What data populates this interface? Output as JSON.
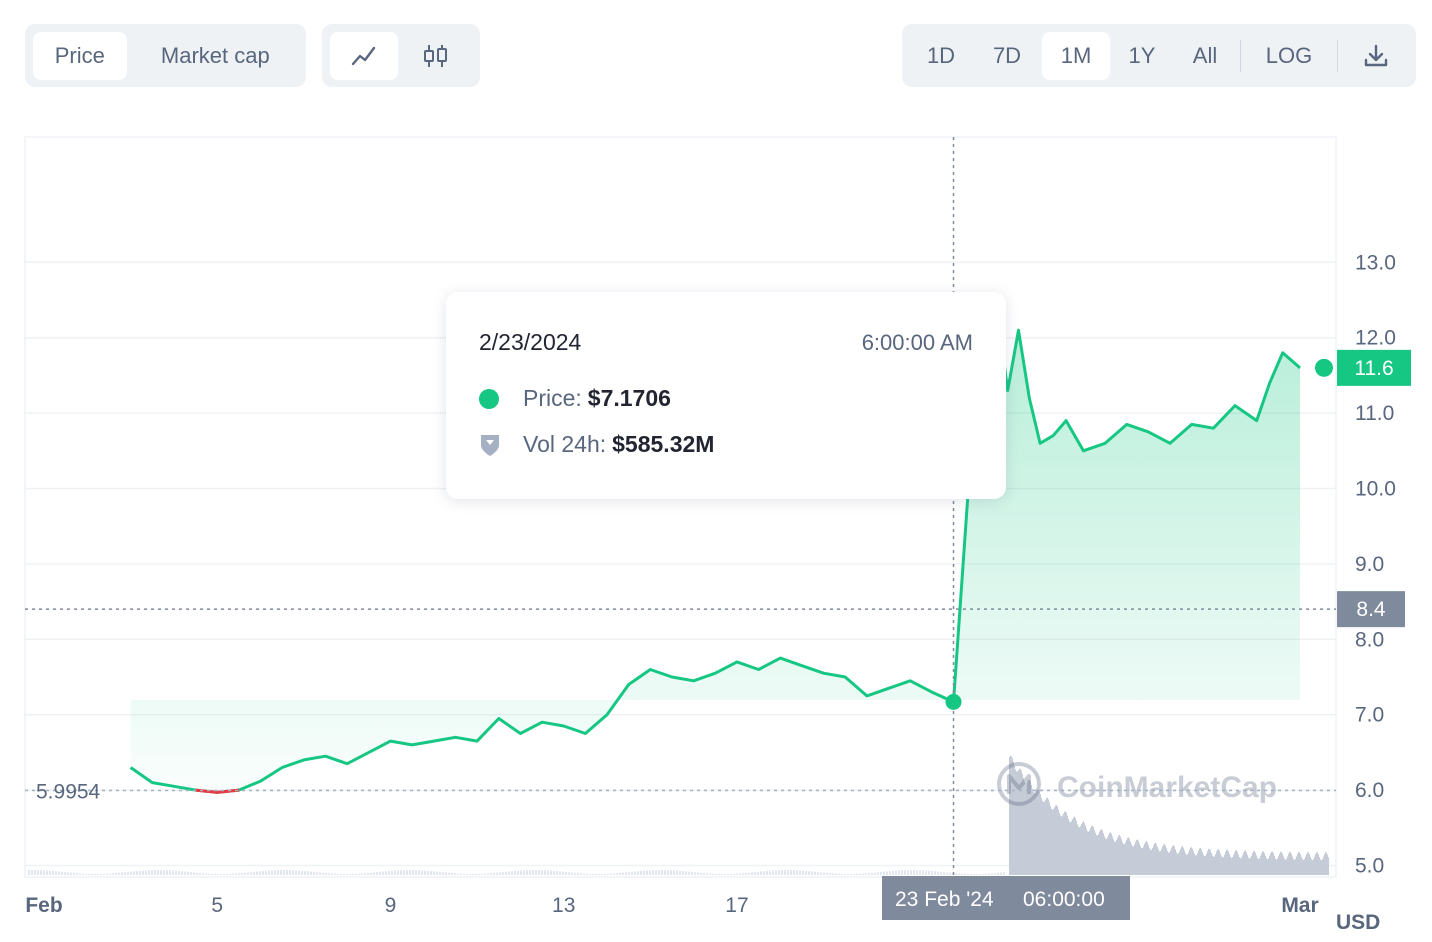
{
  "toolbar": {
    "metric_tabs": [
      {
        "label": "Price",
        "active": true
      },
      {
        "label": "Market cap",
        "active": false
      }
    ],
    "chart_type_icons": [
      "line-chart-icon",
      "candlestick-icon"
    ],
    "ranges": [
      {
        "label": "1D",
        "active": false
      },
      {
        "label": "7D",
        "active": false
      },
      {
        "label": "1M",
        "active": true
      },
      {
        "label": "1Y",
        "active": false
      },
      {
        "label": "All",
        "active": false
      }
    ],
    "log_label": "LOG",
    "download_icon": "download-icon"
  },
  "tooltip": {
    "date": "2/23/2024",
    "time": "6:00:00 AM",
    "price_key": "Price:",
    "price_value": "$7.1706",
    "vol_key": "Vol 24h:",
    "vol_value": "$585.32M",
    "price_icon": "green-dot-icon",
    "vol_icon": "volume-shield-icon"
  },
  "badges": {
    "current_price": "11.6",
    "crosshair_price": "8.4",
    "open_price": "5.9954",
    "crosshair_date": "23 Feb '24",
    "crosshair_time": "06:00:00",
    "currency": "USD"
  },
  "watermark": "CoinMarketCap",
  "colors": {
    "up": "#16c784",
    "down": "#ea3943",
    "badge_gray": "#808a9d",
    "axis_text": "#58667e"
  },
  "chart_data": {
    "type": "area",
    "x_tick_labels": [
      "Feb",
      "5",
      "9",
      "13",
      "17",
      "Mar"
    ],
    "y_tick_labels": [
      "5.0",
      "6.0",
      "7.0",
      "8.0",
      "9.0",
      "10.0",
      "11.0",
      "12.0",
      "13.0"
    ],
    "ylim": [
      4.0,
      13.6
    ],
    "x_range_days": [
      1,
      30
    ],
    "series": [
      {
        "x": [
          3.0,
          3.5,
          4.0,
          4.5,
          5.0,
          5.5,
          6.0,
          6.5,
          7.0,
          7.5,
          8.0,
          8.5,
          9.0,
          9.5,
          10.0,
          10.5,
          11.0,
          11.5,
          12.0,
          12.5,
          13.0,
          13.5,
          14.0,
          14.5,
          15.0,
          15.5,
          16.0,
          16.5,
          17.0,
          17.5,
          18.0,
          18.5,
          19.0,
          19.5,
          20.0,
          20.5,
          21.0,
          21.5,
          22.0,
          22.5,
          23.0,
          23.25,
          23.5,
          23.75,
          24.0,
          24.3,
          24.6,
          25.0,
          25.5,
          26.0,
          26.5,
          27.0,
          27.5,
          28.0,
          28.5,
          29.0,
          29.3,
          29.6,
          30.0
        ],
        "y": [
          6.3,
          6.1,
          6.05,
          6.0,
          5.97,
          6.0,
          6.12,
          6.3,
          6.4,
          6.45,
          6.35,
          6.5,
          6.65,
          6.6,
          6.65,
          6.7,
          6.65,
          6.95,
          6.75,
          6.9,
          6.85,
          6.75,
          7.0,
          7.4,
          7.6,
          7.5,
          7.45,
          7.55,
          7.7,
          7.6,
          7.75,
          7.65,
          7.55,
          7.5,
          7.25,
          7.35,
          7.45,
          7.3,
          7.17,
          11.3,
          12.4,
          11.3,
          12.1,
          11.2,
          10.6,
          10.7,
          10.9,
          10.5,
          10.6,
          10.85,
          10.75,
          10.6,
          10.85,
          10.8,
          11.1,
          10.9,
          11.4,
          11.8,
          11.6
        ]
      }
    ],
    "open_price": 5.9954,
    "current_price": 11.6,
    "crosshair": {
      "label": "23 Feb '24 06:00:00",
      "price": 8.4
    }
  }
}
